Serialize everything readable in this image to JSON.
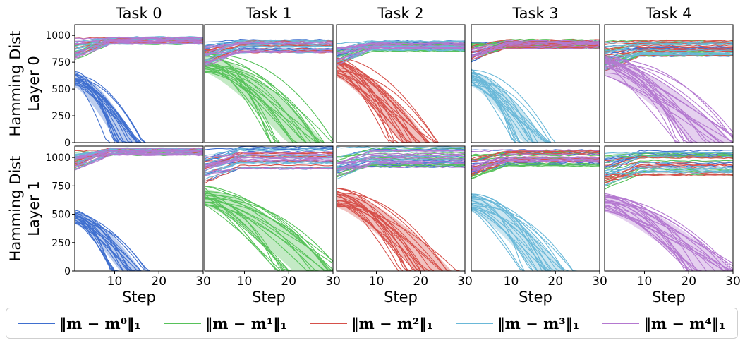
{
  "chart_data": {
    "type": "line",
    "columns": [
      "Task 0",
      "Task 1",
      "Task 2",
      "Task 3",
      "Task 4"
    ],
    "row_labels": [
      [
        "Hamming Dist",
        "Layer 0"
      ],
      [
        "Hamming Dist",
        "Layer 1"
      ]
    ],
    "xlabel": "Step",
    "x_ticks": [
      10,
      20,
      30
    ],
    "xlim": [
      1,
      30
    ],
    "y_ticks_row0": [
      0,
      250,
      500,
      750,
      1000
    ],
    "y_ticks_row1": [
      0,
      250,
      500,
      750,
      1000
    ],
    "ylim_row0": [
      0,
      1100
    ],
    "ylim_row1": [
      0,
      1100
    ],
    "grid": false,
    "legend_position": "bottom",
    "series": [
      {
        "label": "||m − m0||1",
        "color": "#3f6fcf"
      },
      {
        "label": "||m − m1||1",
        "color": "#57c25a"
      },
      {
        "label": "||m − m2||1",
        "color": "#d6504a"
      },
      {
        "label": "||m − m3||1",
        "color": "#6ab8d8"
      },
      {
        "label": "||m − m4||1",
        "color": "#b478d0"
      }
    ],
    "panels": [
      {
        "row": 0,
        "task": 0,
        "high_level": 950,
        "high_spread": 70,
        "decay_start": 650,
        "decay_zero_step": 15
      },
      {
        "row": 0,
        "task": 1,
        "high_level": 900,
        "high_spread": 120,
        "decay_start": 820,
        "decay_zero_step": 28
      },
      {
        "row": 0,
        "task": 2,
        "high_level": 900,
        "high_spread": 100,
        "decay_start": 760,
        "decay_zero_step": 22
      },
      {
        "row": 0,
        "task": 3,
        "high_level": 920,
        "high_spread": 80,
        "decay_start": 660,
        "decay_zero_step": 18
      },
      {
        "row": 0,
        "task": 4,
        "high_level": 880,
        "high_spread": 150,
        "decay_start": 780,
        "decay_zero_step": 30
      },
      {
        "row": 1,
        "task": 0,
        "high_level": 1050,
        "high_spread": 60,
        "decay_start": 520,
        "decay_zero_step": 16
      },
      {
        "row": 1,
        "task": 1,
        "high_level": 1000,
        "high_spread": 200,
        "decay_start": 720,
        "decay_zero_step": 30
      },
      {
        "row": 1,
        "task": 2,
        "high_level": 1000,
        "high_spread": 180,
        "decay_start": 700,
        "decay_zero_step": 27
      },
      {
        "row": 1,
        "task": 3,
        "high_level": 1000,
        "high_spread": 150,
        "decay_start": 650,
        "decay_zero_step": 22
      },
      {
        "row": 1,
        "task": 4,
        "high_level": 950,
        "high_spread": 220,
        "decay_start": 650,
        "decay_zero_step": 30
      }
    ]
  },
  "legend": {
    "items": [
      {
        "label": "‖m − m⁰‖₁"
      },
      {
        "label": "‖m − m¹‖₁"
      },
      {
        "label": "‖m − m²‖₁"
      },
      {
        "label": "‖m − m³‖₁"
      },
      {
        "label": "‖m − m⁴‖₁"
      }
    ]
  }
}
